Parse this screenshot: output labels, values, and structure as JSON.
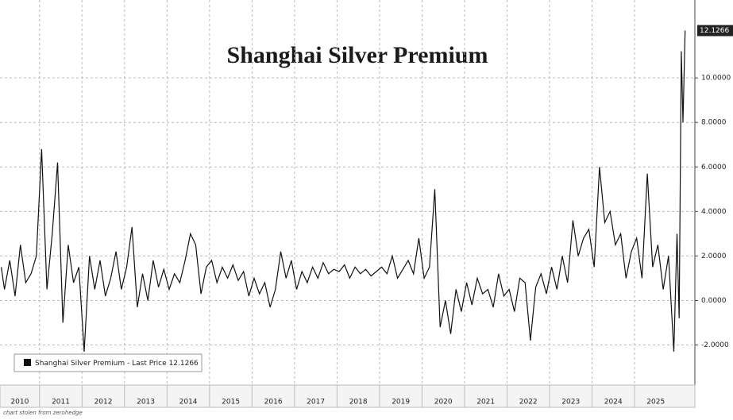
{
  "chart_data": {
    "type": "line",
    "title": "Shanghai Silver Premium",
    "footer": "chart stolen from zerohedge",
    "last_price_label": "Last Price",
    "xlim": [
      2010.07,
      2026.42
    ],
    "xticks": [
      2010,
      2011,
      2012,
      2013,
      2014,
      2015,
      2016,
      2017,
      2018,
      2019,
      2020,
      2021,
      2022,
      2023,
      2024,
      2025
    ],
    "ylim": [
      -3.8,
      13.5
    ],
    "yticks": [
      {
        "value": -2,
        "label": "-2.0000"
      },
      {
        "value": 0,
        "label": "0.0000"
      },
      {
        "value": 2,
        "label": "2.0000"
      },
      {
        "value": 4,
        "label": "4.0000"
      },
      {
        "value": 6,
        "label": "6.0000"
      },
      {
        "value": 8,
        "label": "8.0000"
      },
      {
        "value": 10,
        "label": "10.0000"
      }
    ],
    "grid": true,
    "legend": "lower left",
    "x": [
      2010.1,
      2010.175,
      2010.3,
      2010.425,
      2010.55,
      2010.675,
      2010.8,
      2010.925,
      2011.05,
      2011.175,
      2011.3,
      2011.425,
      2011.55,
      2011.675,
      2011.8,
      2011.925,
      2012.05,
      2012.175,
      2012.3,
      2012.425,
      2012.55,
      2012.675,
      2012.8,
      2012.925,
      2013.05,
      2013.175,
      2013.3,
      2013.425,
      2013.55,
      2013.675,
      2013.8,
      2013.925,
      2014.05,
      2014.175,
      2014.3,
      2014.425,
      2014.55,
      2014.675,
      2014.8,
      2014.925,
      2015.05,
      2015.175,
      2015.3,
      2015.425,
      2015.55,
      2015.675,
      2015.8,
      2015.925,
      2016.05,
      2016.175,
      2016.3,
      2016.425,
      2016.55,
      2016.675,
      2016.8,
      2016.925,
      2017.05,
      2017.175,
      2017.3,
      2017.425,
      2017.55,
      2017.675,
      2017.8,
      2017.925,
      2018.05,
      2018.175,
      2018.3,
      2018.425,
      2018.55,
      2018.675,
      2018.8,
      2018.925,
      2019.05,
      2019.175,
      2019.3,
      2019.425,
      2019.55,
      2019.675,
      2019.8,
      2019.925,
      2020.05,
      2020.175,
      2020.3,
      2020.425,
      2020.55,
      2020.675,
      2020.8,
      2020.925,
      2021.05,
      2021.175,
      2021.3,
      2021.425,
      2021.55,
      2021.675,
      2021.8,
      2021.925,
      2022.05,
      2022.175,
      2022.3,
      2022.425,
      2022.55,
      2022.675,
      2022.8,
      2022.925,
      2023.05,
      2023.175,
      2023.3,
      2023.425,
      2023.55,
      2023.675,
      2023.8,
      2023.925,
      2024.05,
      2024.175,
      2024.3,
      2024.425,
      2024.55,
      2024.675,
      2024.8,
      2024.925,
      2025.05,
      2025.175,
      2025.3,
      2025.425,
      2025.55,
      2025.675,
      2025.8,
      2025.925,
      2026.0,
      2026.05,
      2026.1,
      2026.14,
      2026.19
    ],
    "series": [
      {
        "name": "Shanghai Silver Premium",
        "color": "#111111",
        "values": [
          1.5,
          0.5,
          1.8,
          0.2,
          2.5,
          0.8,
          1.2,
          2.0,
          6.8,
          0.5,
          3.0,
          6.2,
          -1.0,
          2.5,
          0.8,
          1.5,
          -2.3,
          2.0,
          0.5,
          1.8,
          0.2,
          1.0,
          2.2,
          0.5,
          1.5,
          3.3,
          -0.3,
          1.2,
          0.0,
          1.8,
          0.6,
          1.4,
          0.5,
          1.2,
          0.8,
          1.8,
          3.0,
          2.5,
          0.3,
          1.5,
          1.8,
          0.8,
          1.5,
          1.0,
          1.6,
          0.9,
          1.3,
          0.2,
          1.0,
          0.3,
          0.8,
          -0.3,
          0.5,
          2.2,
          1.0,
          1.8,
          0.5,
          1.3,
          0.8,
          1.5,
          1.0,
          1.7,
          1.2,
          1.4,
          1.3,
          1.6,
          1.0,
          1.5,
          1.2,
          1.4,
          1.1,
          1.3,
          1.5,
          1.2,
          2.0,
          1.0,
          1.4,
          1.8,
          1.2,
          2.8,
          1.0,
          1.5,
          5.0,
          -1.2,
          0.0,
          -1.5,
          0.5,
          -0.5,
          0.8,
          -0.2,
          1.0,
          0.3,
          0.5,
          -0.3,
          1.2,
          0.2,
          0.5,
          -0.5,
          1.0,
          0.8,
          -1.8,
          0.6,
          1.2,
          0.3,
          1.5,
          0.5,
          2.0,
          0.8,
          3.6,
          2.0,
          2.8,
          3.2,
          1.5,
          6.0,
          3.5,
          4.0,
          2.5,
          3.0,
          1.0,
          2.2,
          2.8,
          1.0,
          5.7,
          1.5,
          2.5,
          0.5,
          2.0,
          -2.3,
          3.0,
          -0.8,
          11.2,
          8.0,
          12.1266
        ]
      }
    ]
  }
}
